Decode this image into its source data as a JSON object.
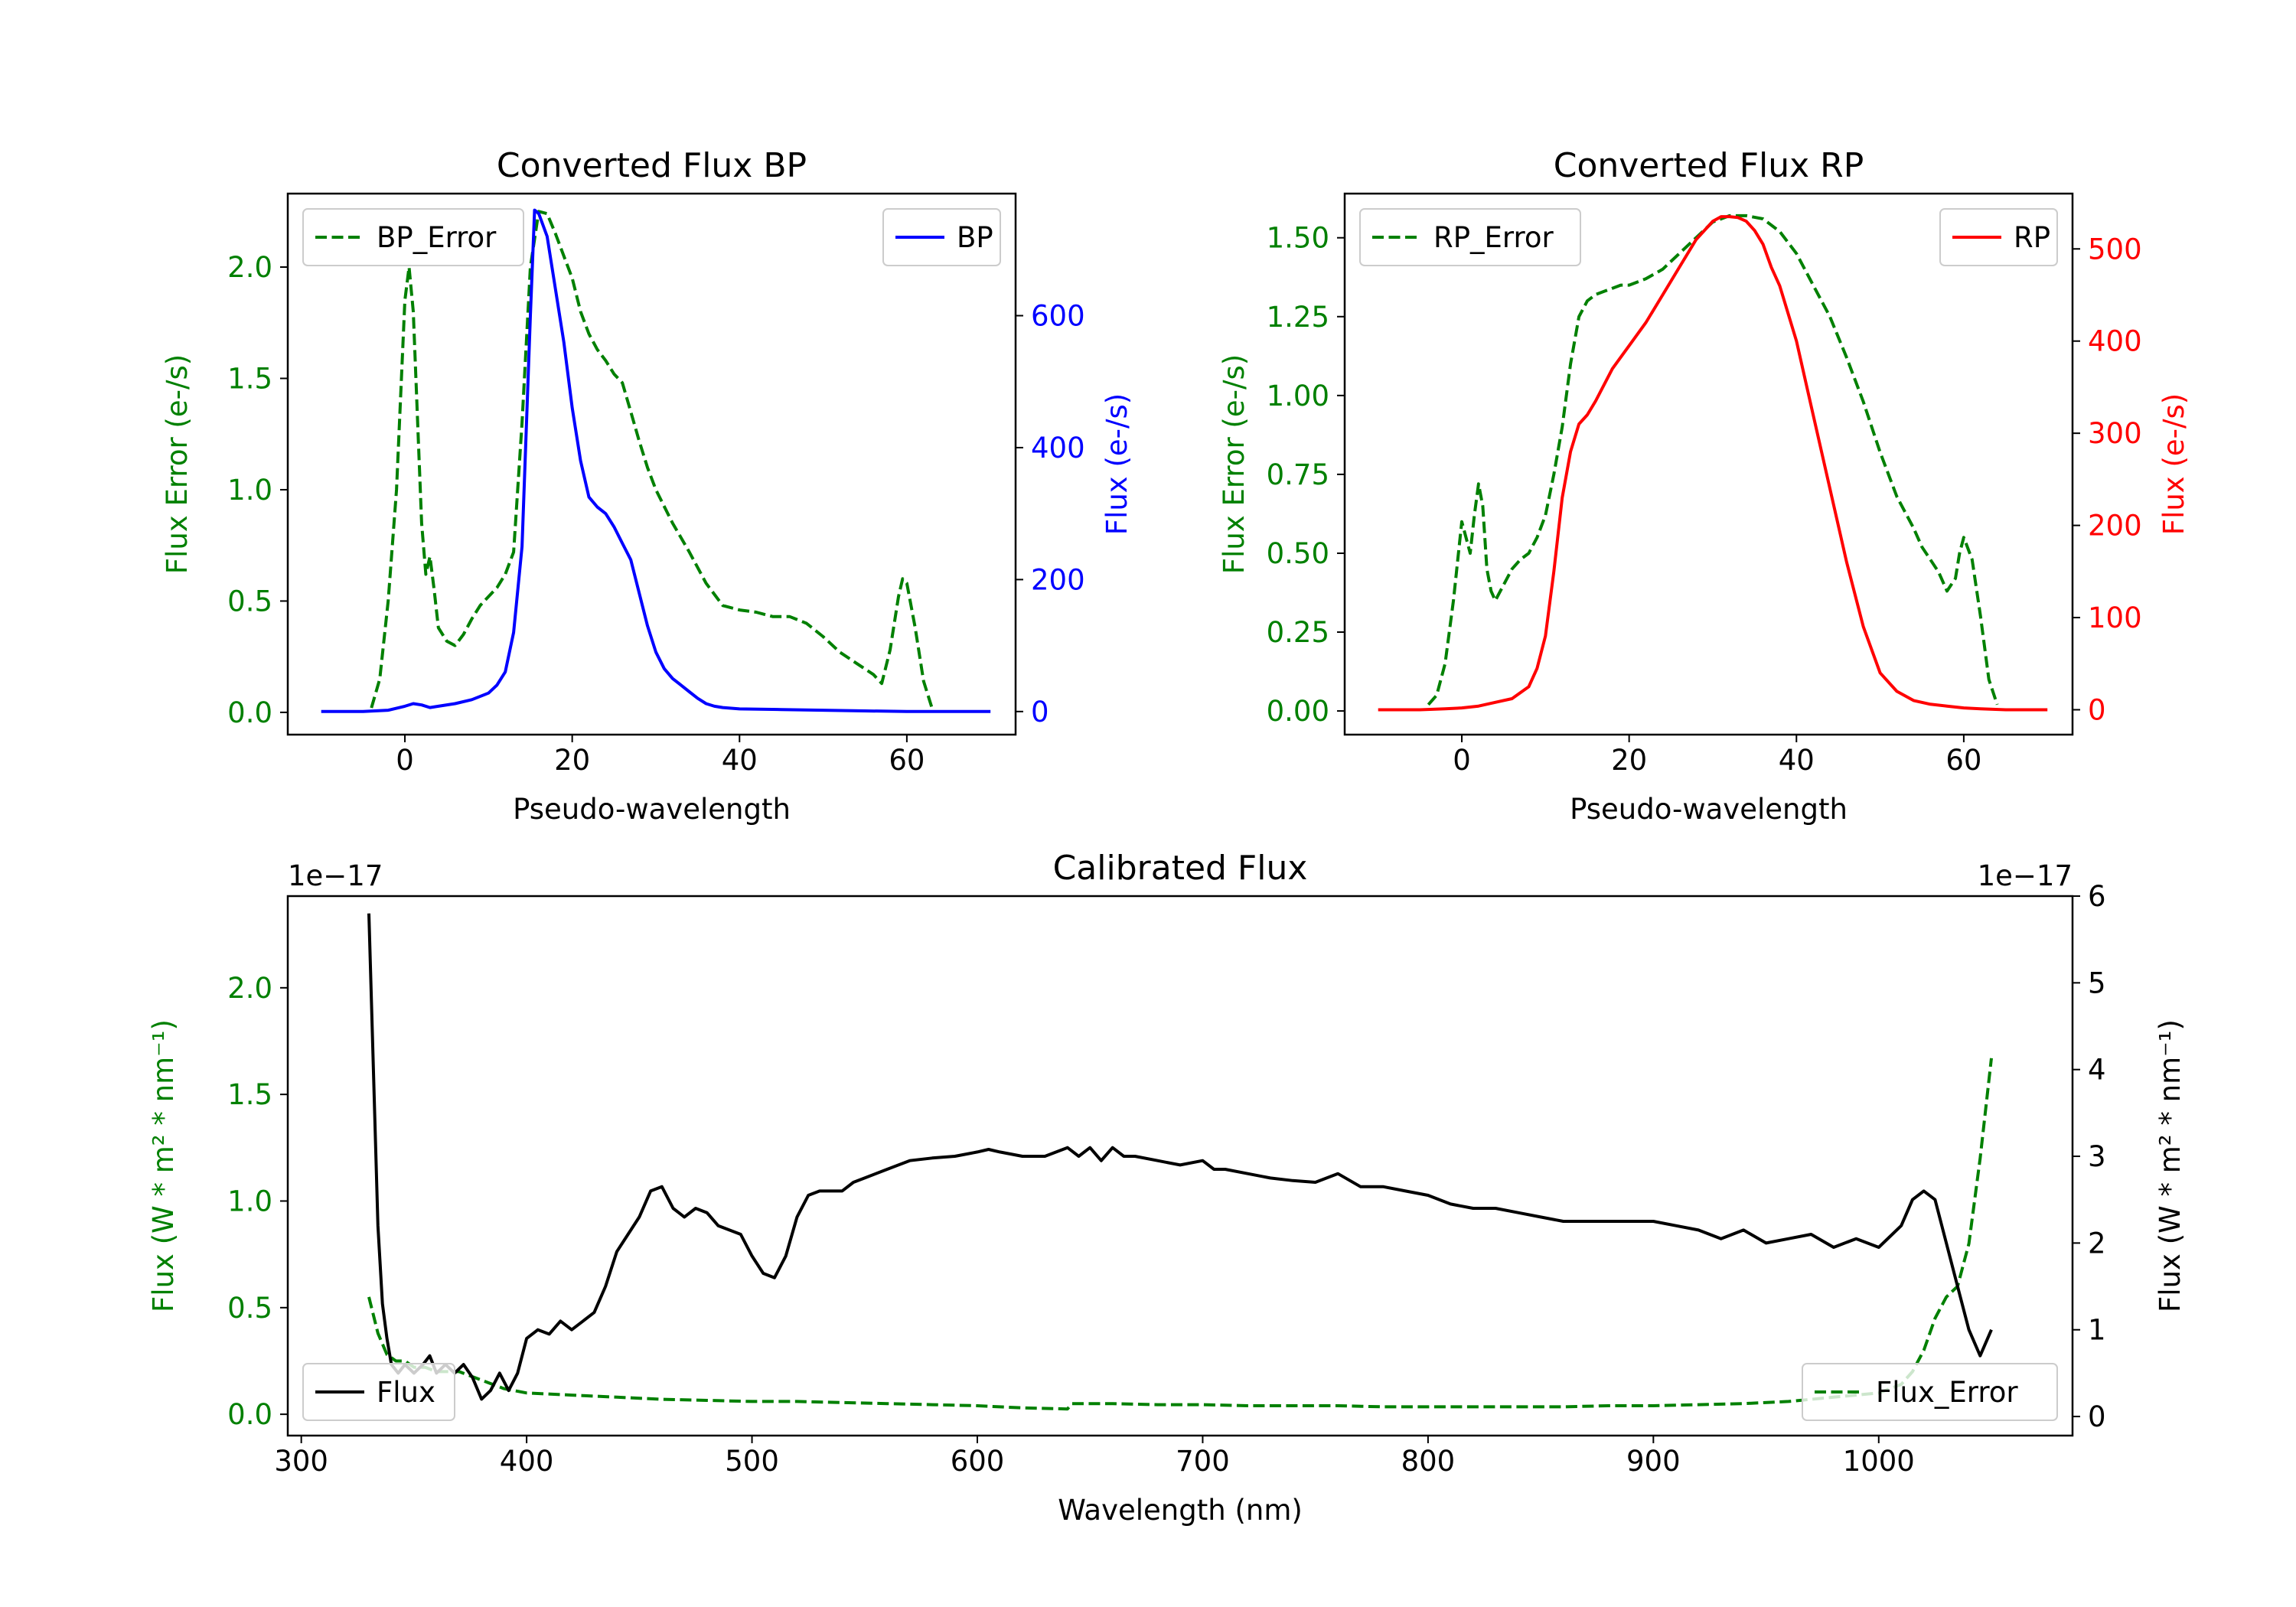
{
  "colors": {
    "green": "#008000",
    "blue": "#0000ff",
    "red": "#ff0000",
    "black": "#000000",
    "axis": "#000000"
  },
  "chart_data": [
    {
      "id": "bp",
      "type": "line",
      "title": "Converted Flux BP",
      "xlabel": "Pseudo-wavelength",
      "ylabel_left": "Flux Error (e-/s)",
      "ylabel_right": "Flux (e-/s)",
      "xlim": [
        -14,
        73
      ],
      "ylim_left": [
        -0.1,
        2.33
      ],
      "ylim_right": [
        -35,
        785
      ],
      "xticks": [
        0,
        20,
        40,
        60
      ],
      "xtick_labels": [
        "0",
        "20",
        "40",
        "60"
      ],
      "yticks_left": [
        0.0,
        0.5,
        1.0,
        1.5,
        2.0
      ],
      "ytick_labels_left": [
        "0.0",
        "0.5",
        "1.0",
        "1.5",
        "2.0"
      ],
      "yticks_right": [
        0,
        200,
        400,
        600
      ],
      "ytick_labels_right": [
        "0",
        "200",
        "400",
        "600"
      ],
      "left_color": "#008000",
      "right_color": "#0000ff",
      "left_legend": {
        "label": "BP_Error",
        "placement": "upper-left"
      },
      "right_legend": {
        "label": "BP",
        "placement": "upper-right"
      },
      "series": [
        {
          "name": "BP_Error",
          "axis": "left",
          "style": "dashed",
          "color": "#008000",
          "x": [
            -4,
            -3,
            -2,
            -1,
            0,
            0.5,
            1,
            2,
            2.5,
            3,
            3.5,
            4,
            5,
            6,
            7,
            8,
            9,
            10,
            11,
            12,
            13,
            14,
            15,
            16,
            17,
            18,
            19,
            20,
            21,
            22,
            23,
            24,
            25,
            26,
            27,
            28,
            29,
            30,
            32,
            34,
            36,
            38,
            40,
            42,
            44,
            46,
            48,
            50,
            52,
            54,
            56,
            57,
            58,
            59,
            59.5,
            60,
            61,
            62,
            63
          ],
          "y": [
            0.02,
            0.15,
            0.5,
            1.0,
            1.85,
            2.0,
            1.8,
            0.85,
            0.62,
            0.7,
            0.55,
            0.38,
            0.32,
            0.3,
            0.35,
            0.42,
            0.48,
            0.52,
            0.56,
            0.62,
            0.72,
            1.3,
            2.0,
            2.25,
            2.24,
            2.15,
            2.05,
            1.95,
            1.8,
            1.7,
            1.63,
            1.58,
            1.52,
            1.48,
            1.35,
            1.22,
            1.1,
            1.0,
            0.85,
            0.72,
            0.58,
            0.48,
            0.46,
            0.45,
            0.43,
            0.43,
            0.4,
            0.34,
            0.27,
            0.22,
            0.17,
            0.13,
            0.28,
            0.52,
            0.6,
            0.58,
            0.38,
            0.14,
            0.02
          ]
        },
        {
          "name": "BP",
          "axis": "right",
          "style": "solid",
          "color": "#0000ff",
          "x": [
            -10,
            -5,
            -2,
            0,
            1,
            2,
            3,
            4,
            6,
            8,
            10,
            11,
            12,
            13,
            14,
            15,
            15.5,
            16,
            17,
            18,
            19,
            20,
            21,
            22,
            23,
            24,
            25,
            26,
            27,
            28,
            29,
            30,
            31,
            32,
            33,
            34,
            35,
            36,
            37,
            38,
            40,
            45,
            50,
            55,
            60,
            65,
            70
          ],
          "y": [
            0,
            0,
            2,
            8,
            12,
            10,
            6,
            8,
            12,
            18,
            28,
            40,
            60,
            120,
            250,
            600,
            760,
            755,
            720,
            640,
            560,
            460,
            380,
            325,
            310,
            300,
            280,
            255,
            230,
            180,
            130,
            90,
            65,
            50,
            40,
            30,
            20,
            12,
            8,
            6,
            4,
            3,
            2,
            1,
            0,
            0,
            0
          ]
        }
      ]
    },
    {
      "id": "rp",
      "type": "line",
      "title": "Converted Flux RP",
      "xlabel": "Pseudo-wavelength",
      "ylabel_left": "Flux Error (e-/s)",
      "ylabel_right": "Flux (e-/s)",
      "xlim": [
        -14,
        73
      ],
      "ylim_left": [
        -0.075,
        1.64
      ],
      "ylim_right": [
        -27,
        560
      ],
      "xticks": [
        0,
        20,
        40,
        60
      ],
      "xtick_labels": [
        "0",
        "20",
        "40",
        "60"
      ],
      "yticks_left": [
        0.0,
        0.25,
        0.5,
        0.75,
        1.0,
        1.25,
        1.5
      ],
      "ytick_labels_left": [
        "0.00",
        "0.25",
        "0.50",
        "0.75",
        "1.00",
        "1.25",
        "1.50"
      ],
      "yticks_right": [
        0,
        100,
        200,
        300,
        400,
        500
      ],
      "ytick_labels_right": [
        "0",
        "100",
        "200",
        "300",
        "400",
        "500"
      ],
      "left_color": "#008000",
      "right_color": "#ff0000",
      "left_legend": {
        "label": "RP_Error",
        "placement": "upper-left"
      },
      "right_legend": {
        "label": "RP",
        "placement": "upper-right"
      },
      "series": [
        {
          "name": "RP_Error",
          "axis": "left",
          "style": "dashed",
          "color": "#008000",
          "x": [
            -4,
            -3,
            -2,
            -1,
            0,
            0.5,
            1,
            1.5,
            2,
            2.5,
            3,
            3.5,
            4,
            5,
            6,
            7,
            8,
            9,
            10,
            11,
            12,
            13,
            14,
            15,
            16,
            17,
            18,
            19,
            20,
            22,
            24,
            26,
            28,
            30,
            32,
            34,
            36,
            38,
            40,
            42,
            44,
            46,
            48,
            50,
            52,
            54,
            55,
            56,
            57,
            58,
            59,
            59.5,
            60,
            61,
            62,
            63,
            64
          ],
          "y": [
            0.02,
            0.05,
            0.15,
            0.35,
            0.6,
            0.55,
            0.5,
            0.62,
            0.72,
            0.65,
            0.45,
            0.38,
            0.35,
            0.4,
            0.45,
            0.48,
            0.5,
            0.55,
            0.62,
            0.75,
            0.9,
            1.1,
            1.25,
            1.3,
            1.32,
            1.33,
            1.34,
            1.35,
            1.35,
            1.37,
            1.4,
            1.45,
            1.5,
            1.55,
            1.57,
            1.57,
            1.56,
            1.52,
            1.45,
            1.35,
            1.25,
            1.12,
            0.98,
            0.82,
            0.68,
            0.58,
            0.52,
            0.48,
            0.44,
            0.38,
            0.42,
            0.5,
            0.55,
            0.48,
            0.3,
            0.1,
            0.02
          ]
        },
        {
          "name": "RP",
          "axis": "right",
          "style": "solid",
          "color": "#ff0000",
          "x": [
            -10,
            -5,
            -2,
            0,
            2,
            4,
            6,
            8,
            9,
            10,
            11,
            12,
            13,
            14,
            15,
            16,
            18,
            20,
            22,
            24,
            26,
            28,
            30,
            31,
            32,
            33,
            34,
            35,
            36,
            37,
            38,
            40,
            42,
            44,
            46,
            48,
            50,
            52,
            54,
            56,
            58,
            60,
            62,
            65,
            70
          ],
          "y": [
            0,
            0,
            1,
            2,
            4,
            8,
            12,
            25,
            45,
            80,
            150,
            230,
            280,
            310,
            320,
            335,
            370,
            395,
            420,
            450,
            480,
            510,
            530,
            535,
            535,
            534,
            530,
            520,
            505,
            480,
            460,
            400,
            320,
            240,
            160,
            90,
            40,
            20,
            10,
            6,
            4,
            2,
            1,
            0,
            0
          ]
        }
      ]
    },
    {
      "id": "calibrated",
      "type": "line",
      "title": "Calibrated Flux",
      "xlabel": "Wavelength (nm)",
      "ylabel_left": "Flux (W * m² * nm⁻¹)",
      "ylabel_right": "Flux (W * m² * nm⁻¹)",
      "offset_left": "1e−17",
      "offset_right": "1e−17",
      "xlim": [
        294,
        1086
      ],
      "ylim_left": [
        -0.1,
        2.43
      ],
      "ylim_right": [
        -0.22,
        6.0
      ],
      "xticks": [
        300,
        400,
        500,
        600,
        700,
        800,
        900,
        1000
      ],
      "xtick_labels": [
        "300",
        "400",
        "500",
        "600",
        "700",
        "800",
        "900",
        "1000"
      ],
      "yticks_left": [
        0.0,
        0.5,
        1.0,
        1.5,
        2.0
      ],
      "ytick_labels_left": [
        "0.0",
        "0.5",
        "1.0",
        "1.5",
        "2.0"
      ],
      "yticks_right": [
        0,
        1,
        2,
        3,
        4,
        5,
        6
      ],
      "ytick_labels_right": [
        "0",
        "1",
        "2",
        "3",
        "4",
        "5",
        "6"
      ],
      "left_color": "#008000",
      "right_color": "#000000",
      "left_legend": {
        "label": "Flux",
        "placement": "lower-left"
      },
      "right_legend": {
        "label": "Flux_Error",
        "placement": "lower-right"
      },
      "series": [
        {
          "name": "Flux_Error",
          "axis": "left",
          "style": "dashed",
          "color": "#008000",
          "x": [
            330,
            334,
            338,
            342,
            346,
            350,
            355,
            360,
            365,
            370,
            375,
            380,
            385,
            390,
            400,
            420,
            440,
            460,
            480,
            500,
            520,
            540,
            560,
            580,
            600,
            620,
            640,
            642,
            660,
            680,
            700,
            720,
            740,
            760,
            780,
            800,
            820,
            840,
            860,
            880,
            900,
            920,
            940,
            960,
            980,
            1000,
            1010,
            1015,
            1020,
            1025,
            1030,
            1035,
            1040,
            1045,
            1050
          ],
          "y": [
            0.55,
            0.38,
            0.28,
            0.25,
            0.25,
            0.22,
            0.22,
            0.2,
            0.2,
            0.2,
            0.18,
            0.16,
            0.14,
            0.12,
            0.1,
            0.09,
            0.08,
            0.07,
            0.065,
            0.06,
            0.06,
            0.055,
            0.05,
            0.045,
            0.04,
            0.03,
            0.025,
            0.05,
            0.05,
            0.045,
            0.045,
            0.04,
            0.04,
            0.04,
            0.035,
            0.035,
            0.035,
            0.035,
            0.035,
            0.04,
            0.04,
            0.045,
            0.05,
            0.06,
            0.08,
            0.1,
            0.14,
            0.2,
            0.3,
            0.45,
            0.55,
            0.6,
            0.8,
            1.2,
            1.67
          ]
        },
        {
          "name": "Flux",
          "axis": "right",
          "style": "solid",
          "color": "#000000",
          "x": [
            330,
            332,
            334,
            336,
            338,
            340,
            343,
            346,
            350,
            354,
            357,
            360,
            364,
            368,
            372,
            376,
            380,
            384,
            388,
            392,
            396,
            400,
            405,
            410,
            415,
            420,
            425,
            430,
            435,
            440,
            445,
            450,
            455,
            460,
            465,
            470,
            475,
            480,
            485,
            490,
            495,
            500,
            505,
            510,
            515,
            520,
            525,
            530,
            535,
            540,
            545,
            550,
            560,
            570,
            580,
            590,
            600,
            605,
            610,
            620,
            630,
            640,
            645,
            650,
            655,
            660,
            665,
            670,
            680,
            690,
            700,
            705,
            710,
            720,
            730,
            740,
            750,
            760,
            770,
            780,
            790,
            800,
            810,
            820,
            830,
            840,
            850,
            860,
            870,
            880,
            890,
            900,
            910,
            920,
            930,
            940,
            950,
            960,
            970,
            980,
            990,
            1000,
            1010,
            1015,
            1020,
            1025,
            1030,
            1035,
            1040,
            1045,
            1050
          ],
          "y": [
            5.8,
            4.0,
            2.2,
            1.3,
            0.9,
            0.6,
            0.5,
            0.6,
            0.5,
            0.6,
            0.7,
            0.5,
            0.6,
            0.5,
            0.6,
            0.45,
            0.2,
            0.3,
            0.5,
            0.3,
            0.5,
            0.9,
            1.0,
            0.95,
            1.1,
            1.0,
            1.1,
            1.2,
            1.5,
            1.9,
            2.1,
            2.3,
            2.6,
            2.65,
            2.4,
            2.3,
            2.4,
            2.35,
            2.2,
            2.15,
            2.1,
            1.85,
            1.65,
            1.6,
            1.85,
            2.3,
            2.55,
            2.6,
            2.6,
            2.6,
            2.7,
            2.75,
            2.85,
            2.95,
            2.98,
            3.0,
            3.05,
            3.08,
            3.05,
            3.0,
            3.0,
            3.1,
            3.0,
            3.1,
            2.95,
            3.1,
            3.0,
            3.0,
            2.95,
            2.9,
            2.95,
            2.85,
            2.85,
            2.8,
            2.75,
            2.72,
            2.7,
            2.8,
            2.65,
            2.65,
            2.6,
            2.55,
            2.45,
            2.4,
            2.4,
            2.35,
            2.3,
            2.25,
            2.25,
            2.25,
            2.25,
            2.25,
            2.2,
            2.15,
            2.05,
            2.15,
            2.0,
            2.05,
            2.1,
            1.95,
            2.05,
            1.95,
            2.2,
            2.5,
            2.6,
            2.5,
            2.0,
            1.5,
            1.0,
            0.7,
            1.0
          ]
        }
      ]
    }
  ]
}
